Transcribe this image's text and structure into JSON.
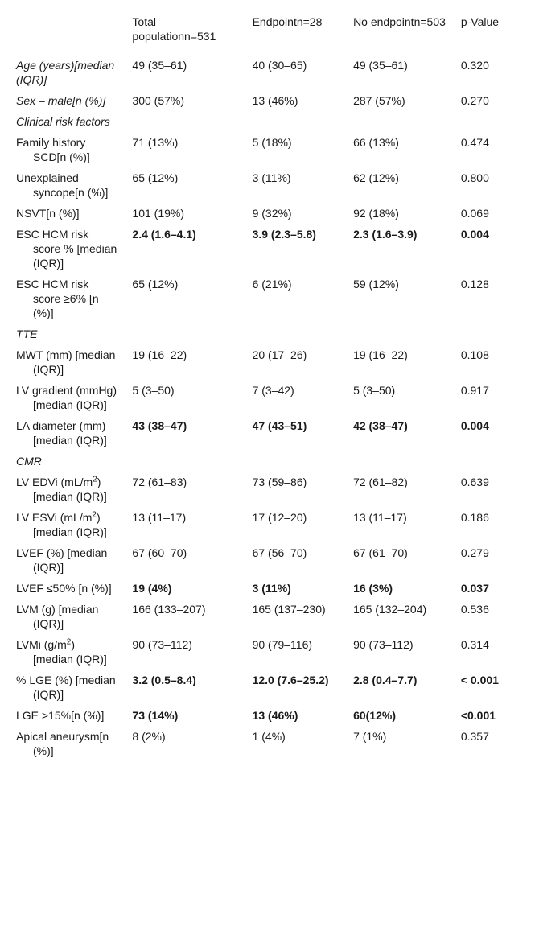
{
  "header": {
    "col0": "",
    "col1": "Total populationn=531",
    "col2": "Endpointn=28",
    "col3": "No endpointn=503",
    "col4": "p-Value"
  },
  "rows": [
    {
      "label": "Age (years)[median (IQR)]",
      "style": "italic",
      "total": "49 (35–61)",
      "endpoint": "40 (30–65)",
      "no_endpoint": "49 (35–61)",
      "p": "0.320"
    },
    {
      "label": "Sex – male[n (%)]",
      "style": "italic",
      "total": "300 (57%)",
      "endpoint": "13 (46%)",
      "no_endpoint": "287 (57%)",
      "p": "0.270"
    },
    {
      "label": "Clinical risk factors",
      "style": "italic",
      "total": "",
      "endpoint": "",
      "no_endpoint": "",
      "p": ""
    },
    {
      "label": "Family history SCD[n (%)]",
      "style": "sub",
      "total": "71 (13%)",
      "endpoint": "5 (18%)",
      "no_endpoint": "66 (13%)",
      "p": "0.474"
    },
    {
      "label": "Unexplained syncope[n (%)]",
      "style": "sub",
      "total": "65 (12%)",
      "endpoint": "3 (11%)",
      "no_endpoint": "62 (12%)",
      "p": "0.800"
    },
    {
      "label": "NSVT[n (%)]",
      "style": "sub",
      "total": "101 (19%)",
      "endpoint": "9 (32%)",
      "no_endpoint": "92 (18%)",
      "p": "0.069"
    },
    {
      "label": "ESC HCM risk score % [median (IQR)]",
      "style": "sub",
      "bold": true,
      "total": "2.4 (1.6–4.1)",
      "endpoint": "3.9 (2.3–5.8)",
      "no_endpoint": "2.3 (1.6–3.9)",
      "p": "0.004"
    },
    {
      "label": "ESC HCM risk score ≥6% [n (%)]",
      "style": "sub",
      "total": "65 (12%)",
      "endpoint": "6 (21%)",
      "no_endpoint": "59 (12%)",
      "p": "0.128"
    },
    {
      "label": "TTE",
      "style": "italic",
      "total": "",
      "endpoint": "",
      "no_endpoint": "",
      "p": ""
    },
    {
      "label": "MWT (mm) [median (IQR)]",
      "style": "sub",
      "total": "19 (16–22)",
      "endpoint": "20 (17–26)",
      "no_endpoint": "19 (16–22)",
      "p": "0.108"
    },
    {
      "label": "LV gradient (mmHg) [median (IQR)]",
      "style": "sub",
      "total": "5 (3–50)",
      "endpoint": "7 (3–42)",
      "no_endpoint": "5 (3–50)",
      "p": "0.917"
    },
    {
      "label": "LA diameter (mm)[median (IQR)]",
      "style": "sub",
      "bold": true,
      "total": "43 (38–47)",
      "endpoint": "47 (43–51)",
      "no_endpoint": "42 (38–47)",
      "p": "0.004"
    },
    {
      "label": "CMR",
      "style": "italic",
      "total": "",
      "endpoint": "",
      "no_endpoint": "",
      "p": ""
    },
    {
      "label_pre": "LV EDVi (mL/m",
      "label_sup": "2",
      "label_post": ") [median (IQR)]",
      "style": "sub",
      "total": "72 (61–83)",
      "endpoint": "73 (59–86)",
      "no_endpoint": "72 (61–82)",
      "p": "0.639"
    },
    {
      "label_pre": "LV ESVi (mL/m",
      "label_sup": "2",
      "label_post": ") [median (IQR)]",
      "style": "sub",
      "total": "13 (11–17)",
      "endpoint": "17 (12–20)",
      "no_endpoint": "13 (11–17)",
      "p": "0.186"
    },
    {
      "label": "LVEF (%) [median (IQR)]",
      "style": "sub",
      "total": "67 (60–70)",
      "endpoint": "67 (56–70)",
      "no_endpoint": "67 (61–70)",
      "p": "0.279"
    },
    {
      "label": "LVEF ≤50% [n (%)]",
      "style": "sub",
      "bold": true,
      "total": "19 (4%)",
      "endpoint": "3 (11%)",
      "no_endpoint": "16 (3%)",
      "p": "0.037"
    },
    {
      "label": "LVM (g) [median (IQR)]",
      "style": "sub",
      "total": "166 (133–207)",
      "endpoint": "165 (137–230)",
      "no_endpoint": "165 (132–204)",
      "p": "0.536"
    },
    {
      "label_pre": "LVMi (g/m",
      "label_sup": "2",
      "label_post": ") [median (IQR)]",
      "style": "sub",
      "total": "90 (73–112)",
      "endpoint": "90 (79–116)",
      "no_endpoint": "90 (73–112)",
      "p": "0.314"
    },
    {
      "label": "% LGE (%) [median (IQR)]",
      "style": "sub",
      "bold": true,
      "total": "3.2 (0.5–8.4)",
      "endpoint": "12.0 (7.6–25.2)",
      "no_endpoint": "2.8 (0.4–7.7)",
      "p": "< 0.001"
    },
    {
      "label": "LGE >15%[n (%)]",
      "style": "sub",
      "bold": true,
      "total": "73 (14%)",
      "endpoint": "13 (46%)",
      "no_endpoint": "60(12%)",
      "p": "<0.001"
    },
    {
      "label": "Apical aneurysm[n (%)]",
      "style": "sub",
      "total": "8 (2%)",
      "endpoint": "1 (4%)",
      "no_endpoint": "7 (1%)",
      "p": "0.357"
    }
  ]
}
